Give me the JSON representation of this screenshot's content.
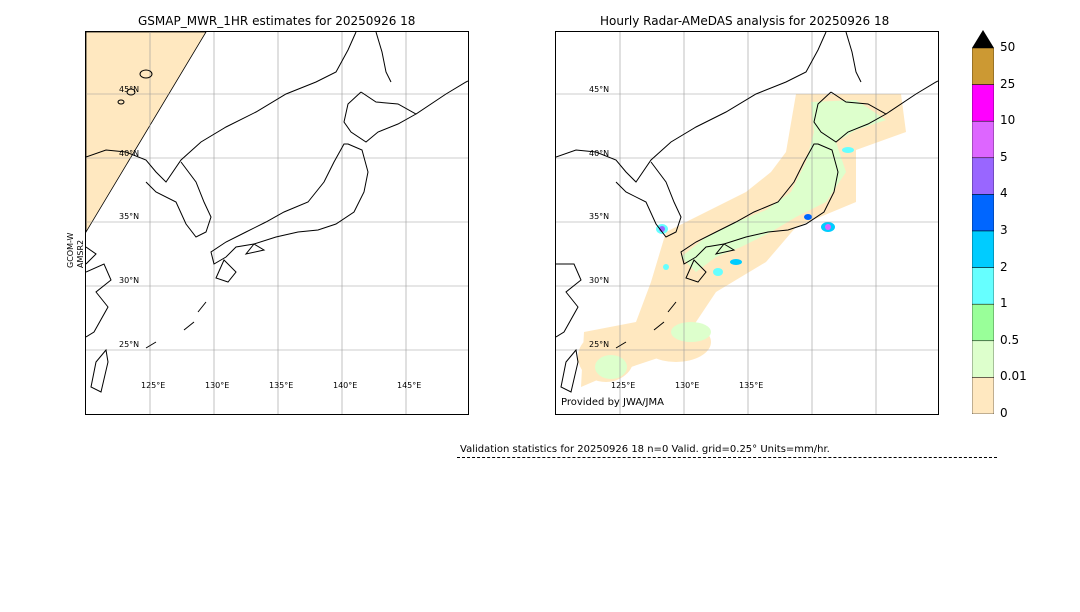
{
  "left_map": {
    "title": "GSMAP_MWR_1HR estimates for 20250926 18",
    "side_label_1": "GCOM-W",
    "side_label_2": "AMSR2",
    "lat_labels": [
      "45°N",
      "40°N",
      "35°N",
      "30°N",
      "25°N"
    ],
    "lon_labels": [
      "125°E",
      "130°E",
      "135°E",
      "140°E",
      "145°E"
    ]
  },
  "right_map": {
    "title": "Hourly Radar-AMeDAS analysis for 20250926 18",
    "credit": "Provided by JWA/JMA",
    "lat_labels": [
      "45°N",
      "40°N",
      "35°N",
      "30°N",
      "25°N"
    ],
    "lon_labels": [
      "125°E",
      "130°E",
      "135°E"
    ]
  },
  "colorbar": {
    "levels": [
      "50",
      "25",
      "10",
      "5",
      "4",
      "3",
      "2",
      "1",
      "0.5",
      "0.01",
      "0"
    ],
    "colors": [
      "#000000",
      "#cc9933",
      "#ff00ff",
      "#dd66ff",
      "#9966ff",
      "#0066ff",
      "#00ccff",
      "#66ffff",
      "#99ff99",
      "#ddffcc",
      "#ffe8c0"
    ]
  },
  "validation": {
    "text": "Validation statistics for 20250926 18  n=0 Valid. grid=0.25° Units=mm/hr."
  }
}
